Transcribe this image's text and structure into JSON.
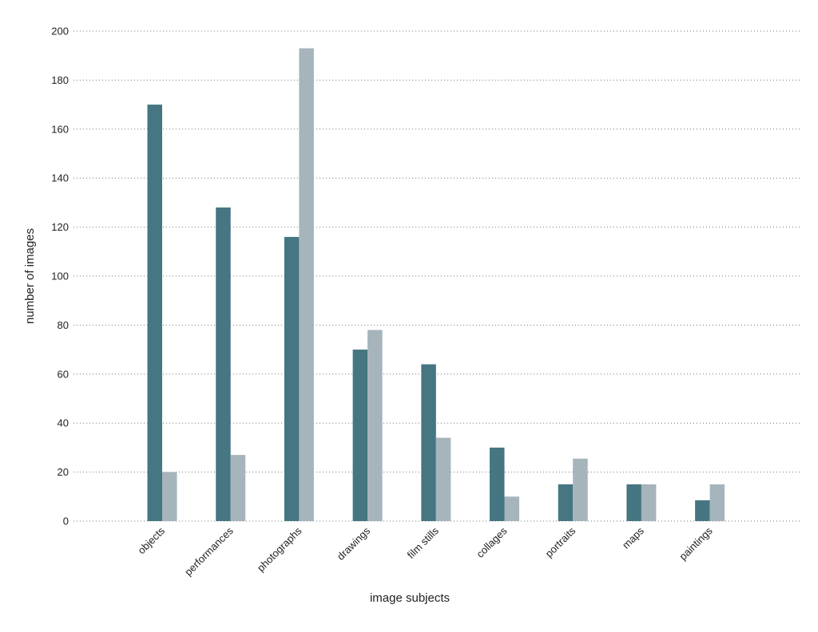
{
  "chart_data": {
    "type": "bar",
    "title": "",
    "xlabel": "image subjects",
    "ylabel": "number of images",
    "ylim": [
      0,
      200
    ],
    "yticks": [
      0,
      20,
      40,
      60,
      80,
      100,
      120,
      140,
      160,
      180,
      200
    ],
    "grid": true,
    "legend": "none",
    "categories": [
      "objects",
      "performances",
      "photographs",
      "drawings",
      "film stills",
      "collages",
      "portraits",
      "maps",
      "paintings"
    ],
    "series": [
      {
        "color": "#457682",
        "values": [
          170,
          128,
          116,
          70,
          64,
          30,
          15,
          15,
          8.5
        ]
      },
      {
        "color": "#a6b4bb",
        "values": [
          20,
          27,
          193,
          78,
          34,
          10,
          25.5,
          15,
          15
        ]
      }
    ]
  }
}
